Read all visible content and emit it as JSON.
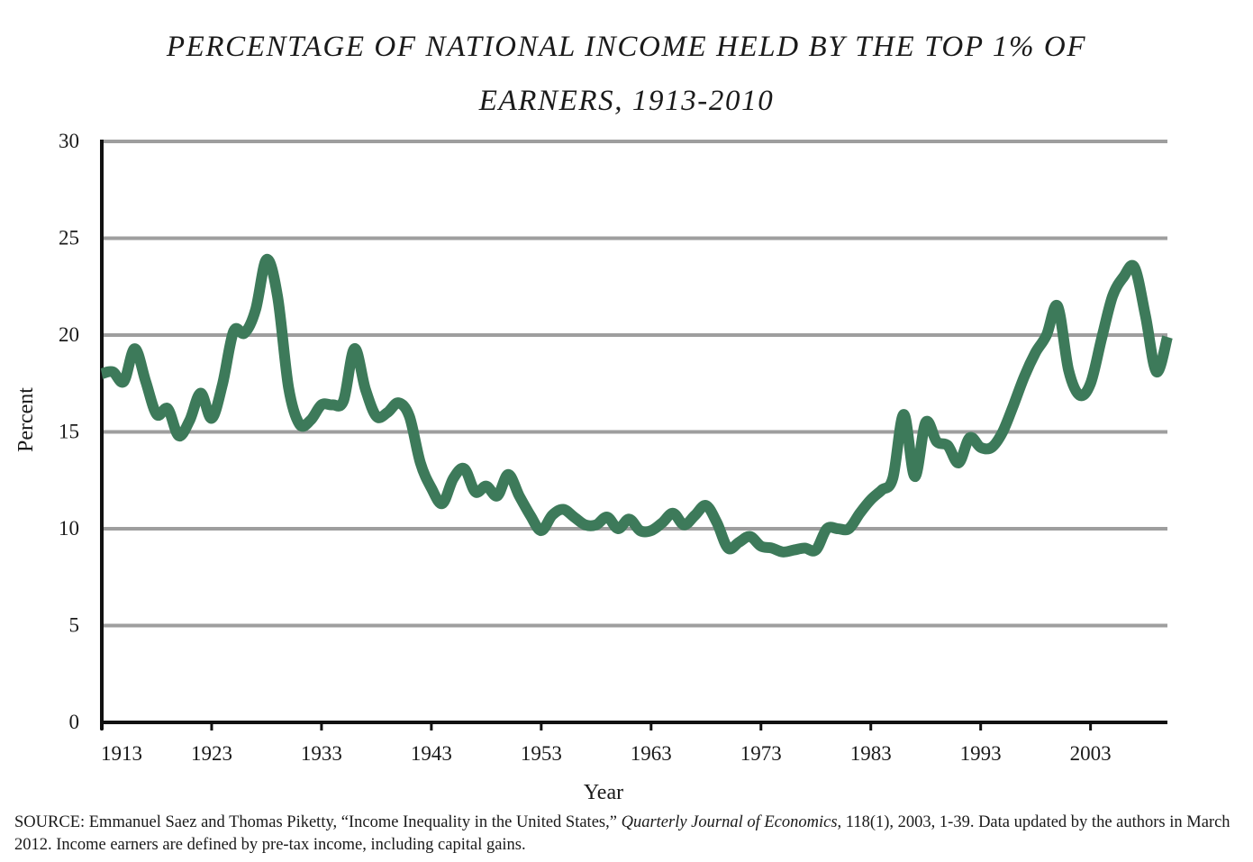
{
  "chart_data": {
    "type": "line",
    "title_line1": "PERCENTAGE OF NATIONAL INCOME HELD BY THE TOP 1% OF",
    "title_line2": "EARNERS, 1913-2010",
    "xlabel": "Year",
    "ylabel": "Percent",
    "xlim": [
      1913,
      2010
    ],
    "ylim": [
      0,
      30
    ],
    "y_ticks": [
      "0",
      "5",
      "10",
      "15",
      "20",
      "25",
      "30"
    ],
    "x_ticks": [
      "1913",
      "1923",
      "1933",
      "1943",
      "1953",
      "1963",
      "1973",
      "1983",
      "1993",
      "2003"
    ],
    "grid": true,
    "line_color": "#3d7a5a",
    "x": [
      1913,
      1914,
      1915,
      1916,
      1917,
      1918,
      1919,
      1920,
      1921,
      1922,
      1923,
      1924,
      1925,
      1926,
      1927,
      1928,
      1929,
      1930,
      1931,
      1932,
      1933,
      1934,
      1935,
      1936,
      1937,
      1938,
      1939,
      1940,
      1941,
      1942,
      1943,
      1944,
      1945,
      1946,
      1947,
      1948,
      1949,
      1950,
      1951,
      1952,
      1953,
      1954,
      1955,
      1956,
      1957,
      1958,
      1959,
      1960,
      1961,
      1962,
      1963,
      1964,
      1965,
      1966,
      1967,
      1968,
      1969,
      1970,
      1971,
      1972,
      1973,
      1974,
      1975,
      1976,
      1977,
      1978,
      1979,
      1980,
      1981,
      1982,
      1983,
      1984,
      1985,
      1986,
      1987,
      1988,
      1989,
      1990,
      1991,
      1992,
      1993,
      1994,
      1995,
      1996,
      1997,
      1998,
      1999,
      2000,
      2001,
      2002,
      2003,
      2004,
      2005,
      2006,
      2007,
      2008,
      2009,
      2010
    ],
    "values": [
      18.0,
      18.1,
      17.6,
      19.3,
      17.6,
      15.9,
      16.2,
      14.8,
      15.6,
      17.0,
      15.7,
      17.5,
      20.2,
      20.1,
      21.3,
      23.9,
      22.0,
      17.3,
      15.4,
      15.6,
      16.4,
      16.4,
      16.6,
      19.3,
      17.2,
      15.8,
      16.0,
      16.5,
      15.8,
      13.4,
      12.1,
      11.3,
      12.6,
      13.1,
      11.9,
      12.2,
      11.7,
      12.8,
      11.7,
      10.7,
      9.9,
      10.7,
      11.0,
      10.6,
      10.2,
      10.2,
      10.6,
      10.0,
      10.5,
      9.9,
      9.9,
      10.3,
      10.8,
      10.2,
      10.7,
      11.2,
      10.3,
      9.0,
      9.3,
      9.6,
      9.1,
      9.0,
      8.8,
      8.9,
      9.0,
      8.9,
      10.0,
      10.0,
      10.0,
      10.8,
      11.5,
      12.0,
      12.6,
      15.9,
      12.7,
      15.5,
      14.5,
      14.3,
      13.4,
      14.7,
      14.2,
      14.2,
      15.0,
      16.4,
      17.9,
      19.1,
      20.0,
      21.5,
      18.2,
      16.9,
      17.5,
      19.8,
      22.0,
      23.0,
      23.5,
      21.0,
      18.1,
      19.9
    ]
  },
  "source": {
    "prefix": "SOURCE: Emmanuel Saez and Thomas Piketty, “Income Inequality in the United States,” ",
    "journal": "Quarterly Journal of Economics",
    "suffix": ", 118(1), 2003, 1-39. Data updated by the authors in March 2012. Income earners are defined by pre-tax income, including capital gains."
  }
}
